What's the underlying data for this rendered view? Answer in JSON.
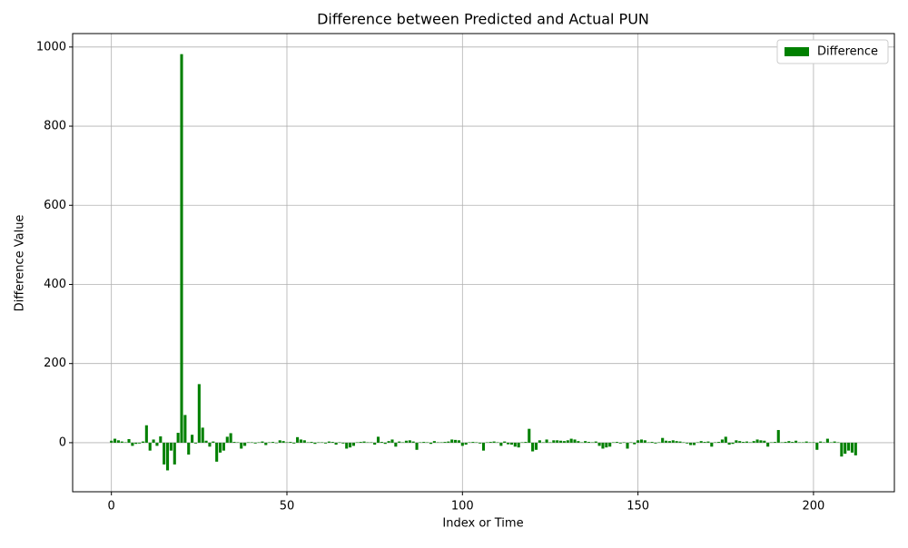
{
  "chart_data": {
    "type": "bar",
    "title": "Difference between Predicted and Actual PUN",
    "x_label": "Index or Time",
    "y_label": "Difference Value",
    "x": [
      0,
      1,
      2,
      3,
      4,
      5,
      6,
      7,
      8,
      9,
      10,
      11,
      12,
      13,
      14,
      15,
      16,
      17,
      18,
      19,
      20,
      21,
      22,
      23,
      24,
      25,
      26,
      27,
      28,
      29,
      30,
      31,
      32,
      33,
      34,
      35,
      36,
      37,
      38,
      39,
      40,
      41,
      42,
      43,
      44,
      45,
      46,
      47,
      48,
      49,
      50,
      51,
      52,
      53,
      54,
      55,
      56,
      57,
      58,
      59,
      60,
      61,
      62,
      63,
      64,
      65,
      66,
      67,
      68,
      69,
      70,
      71,
      72,
      73,
      74,
      75,
      76,
      77,
      78,
      79,
      80,
      81,
      82,
      83,
      84,
      85,
      86,
      87,
      88,
      89,
      90,
      91,
      92,
      93,
      94,
      95,
      96,
      97,
      98,
      99,
      100,
      101,
      102,
      103,
      104,
      105,
      106,
      107,
      108,
      109,
      110,
      111,
      112,
      113,
      114,
      115,
      116,
      117,
      118,
      119,
      120,
      121,
      122,
      123,
      124,
      125,
      126,
      127,
      128,
      129,
      130,
      131,
      132,
      133,
      134,
      135,
      136,
      137,
      138,
      139,
      140,
      141,
      142,
      143,
      144,
      145,
      146,
      147,
      148,
      149,
      150,
      151,
      152,
      153,
      154,
      155,
      156,
      157,
      158,
      159,
      160,
      161,
      162,
      163,
      164,
      165,
      166,
      167,
      168,
      169,
      170,
      171,
      172,
      173,
      174,
      175,
      176,
      177,
      178,
      179,
      180,
      181,
      182,
      183,
      184,
      185,
      186,
      187,
      188,
      189,
      190,
      191,
      192,
      193,
      194,
      195,
      196,
      197,
      198,
      199,
      200,
      201,
      202,
      203,
      204,
      205,
      206,
      207,
      208,
      209,
      210,
      211,
      212
    ],
    "series": [
      {
        "name": "Difference",
        "color": "#008000",
        "values": [
          5,
          10,
          6,
          3,
          1,
          9,
          -8,
          -3,
          -2,
          3,
          44,
          -20,
          8,
          -8,
          16,
          -55,
          -70,
          -20,
          -55,
          25,
          982,
          70,
          -30,
          20,
          -2,
          148,
          38,
          5,
          -10,
          3,
          -48,
          -25,
          -20,
          15,
          24,
          2,
          1,
          -15,
          -8,
          1,
          1,
          -2,
          1,
          3,
          -6,
          1,
          2,
          -1,
          6,
          4,
          1,
          2,
          -2,
          14,
          8,
          6,
          1,
          2,
          -3,
          1,
          1,
          -2,
          3,
          2,
          -5,
          1,
          -2,
          -15,
          -12,
          -8,
          1,
          2,
          3,
          1,
          1,
          -5,
          15,
          2,
          -3,
          4,
          8,
          -10,
          3,
          1,
          5,
          6,
          3,
          -18,
          1,
          2,
          1,
          -3,
          4,
          1,
          1,
          2,
          3,
          8,
          7,
          6,
          -8,
          -5,
          1,
          2,
          1,
          -2,
          -20,
          1,
          2,
          3,
          1,
          -8,
          3,
          -4,
          -5,
          -10,
          -12,
          1,
          2,
          35,
          -22,
          -18,
          6,
          1,
          8,
          1,
          6,
          6,
          5,
          4,
          6,
          10,
          8,
          4,
          1,
          4,
          2,
          1,
          3,
          -8,
          -15,
          -12,
          -10,
          1,
          2,
          -2,
          1,
          -15,
          1,
          -4,
          6,
          8,
          6,
          1,
          2,
          -2,
          1,
          12,
          5,
          4,
          6,
          4,
          3,
          1,
          -2,
          -6,
          -6,
          1,
          4,
          2,
          3,
          -10,
          1,
          2,
          8,
          15,
          -5,
          -3,
          6,
          4,
          2,
          3,
          1,
          4,
          8,
          6,
          5,
          -10,
          1,
          2,
          32,
          1,
          2,
          4,
          2,
          5,
          1,
          1,
          3,
          1,
          1,
          -18,
          3,
          1,
          10,
          1,
          3,
          1,
          -35,
          -28,
          -20,
          -25,
          -32
        ]
      }
    ],
    "xlim": [
      -11.04,
      223.04
    ],
    "ylim": [
      -124,
      1034
    ],
    "xticks": [
      0,
      50,
      100,
      150,
      200
    ],
    "yticks": [
      0,
      200,
      400,
      600,
      800,
      1000
    ],
    "grid": true,
    "legend": "upper right"
  }
}
